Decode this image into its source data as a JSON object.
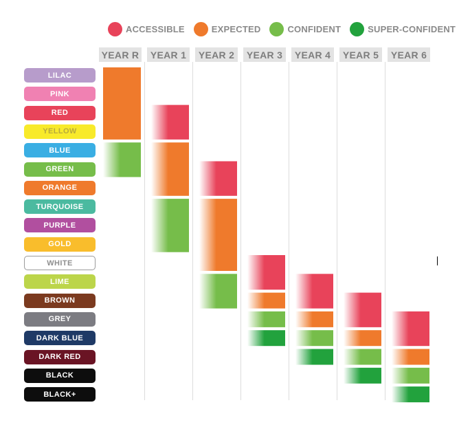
{
  "chart_data": {
    "type": "heatmap",
    "legend": [
      {
        "label": "ACCESSIBLE",
        "color": "#e8435a"
      },
      {
        "label": "EXPECTED",
        "color": "#ef7a2c"
      },
      {
        "label": "CONFIDENT",
        "color": "#76bd4a"
      },
      {
        "label": "SUPER-CONFIDENT",
        "color": "#22a23d"
      }
    ],
    "years": [
      "YEAR R",
      "YEAR 1",
      "YEAR 2",
      "YEAR 3",
      "YEAR 4",
      "YEAR 5",
      "YEAR 6"
    ],
    "bands": [
      {
        "label": "LILAC",
        "color": "#b79ccb"
      },
      {
        "label": "PINK",
        "color": "#f081b2"
      },
      {
        "label": "RED",
        "color": "#e8435a"
      },
      {
        "label": "YELLOW",
        "color": "#f8ea2a"
      },
      {
        "label": "BLUE",
        "color": "#3aaee3"
      },
      {
        "label": "GREEN",
        "color": "#76bd4a"
      },
      {
        "label": "ORANGE",
        "color": "#ef7a2c"
      },
      {
        "label": "TURQUOISE",
        "color": "#4bbaa0"
      },
      {
        "label": "PURPLE",
        "color": "#b14f9f"
      },
      {
        "label": "GOLD",
        "color": "#f9bd2c"
      },
      {
        "label": "WHITE",
        "color": "#ffffff"
      },
      {
        "label": "LIME",
        "color": "#bcd54a"
      },
      {
        "label": "BROWN",
        "color": "#7b3a1f"
      },
      {
        "label": "GREY",
        "color": "#7c7c82"
      },
      {
        "label": "DARK BLUE",
        "color": "#1f3a66"
      },
      {
        "label": "DARK RED",
        "color": "#6a1424"
      },
      {
        "label": "BLACK",
        "color": "#0d0d0d"
      },
      {
        "label": "BLACK+",
        "color": "#0d0d0d"
      }
    ],
    "cells": [
      {
        "year": "YEAR R",
        "level": "EXPECTED",
        "from_band": 0,
        "to_band": 3
      },
      {
        "year": "YEAR R",
        "level": "CONFIDENT",
        "from_band": 4,
        "to_band": 5
      },
      {
        "year": "YEAR 1",
        "level": "ACCESSIBLE",
        "from_band": 2,
        "to_band": 3
      },
      {
        "year": "YEAR 1",
        "level": "EXPECTED",
        "from_band": 4,
        "to_band": 6
      },
      {
        "year": "YEAR 1",
        "level": "CONFIDENT",
        "from_band": 7,
        "to_band": 9
      },
      {
        "year": "YEAR 2",
        "level": "ACCESSIBLE",
        "from_band": 5,
        "to_band": 6
      },
      {
        "year": "YEAR 2",
        "level": "EXPECTED",
        "from_band": 7,
        "to_band": 10
      },
      {
        "year": "YEAR 2",
        "level": "CONFIDENT",
        "from_band": 11,
        "to_band": 12
      },
      {
        "year": "YEAR 3",
        "level": "ACCESSIBLE",
        "from_band": 10,
        "to_band": 11
      },
      {
        "year": "YEAR 3",
        "level": "EXPECTED",
        "from_band": 12,
        "to_band": 12
      },
      {
        "year": "YEAR 3",
        "level": "CONFIDENT",
        "from_band": 13,
        "to_band": 13
      },
      {
        "year": "YEAR 3",
        "level": "SUPER-CONFIDENT",
        "from_band": 14,
        "to_band": 14
      },
      {
        "year": "YEAR 4",
        "level": "ACCESSIBLE",
        "from_band": 11,
        "to_band": 12
      },
      {
        "year": "YEAR 4",
        "level": "EXPECTED",
        "from_band": 13,
        "to_band": 13
      },
      {
        "year": "YEAR 4",
        "level": "CONFIDENT",
        "from_band": 14,
        "to_band": 14
      },
      {
        "year": "YEAR 4",
        "level": "SUPER-CONFIDENT",
        "from_band": 15,
        "to_band": 15
      },
      {
        "year": "YEAR 5",
        "level": "ACCESSIBLE",
        "from_band": 12,
        "to_band": 13
      },
      {
        "year": "YEAR 5",
        "level": "EXPECTED",
        "from_band": 14,
        "to_band": 14
      },
      {
        "year": "YEAR 5",
        "level": "CONFIDENT",
        "from_band": 15,
        "to_band": 15
      },
      {
        "year": "YEAR 5",
        "level": "SUPER-CONFIDENT",
        "from_band": 16,
        "to_band": 16
      },
      {
        "year": "YEAR 6",
        "level": "ACCESSIBLE",
        "from_band": 13,
        "to_band": 14
      },
      {
        "year": "YEAR 6",
        "level": "EXPECTED",
        "from_band": 15,
        "to_band": 15
      },
      {
        "year": "YEAR 6",
        "level": "CONFIDENT",
        "from_band": 16,
        "to_band": 16
      },
      {
        "year": "YEAR 6",
        "level": "SUPER-CONFIDENT",
        "from_band": 17,
        "to_band": 17
      }
    ]
  }
}
